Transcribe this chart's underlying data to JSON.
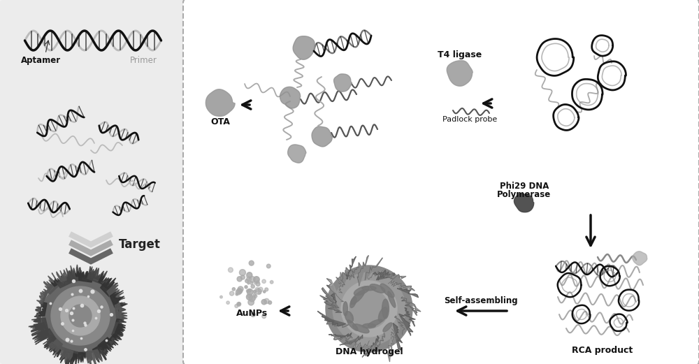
{
  "bg_color": "#f0f0f0",
  "right_panel_bg": "#ffffff",
  "border_color": "#999999",
  "left_panel_bg": "#e8e8e8",
  "labels": {
    "aptamer": "Aptamer",
    "primer": "Primer",
    "target": "Target",
    "ota": "OTA",
    "t4_ligase": "T4 ligase",
    "padlock": "Padlock probe",
    "phi29_line1": "Phi29 DNA",
    "phi29_line2": "Polymerase",
    "self_assembling": "Self-assembling",
    "dna_hydrogel": "DNA hydrogel",
    "aunps": "AuNPs",
    "rca_product": "RCA product"
  },
  "arrow_color": "#111111",
  "dna_black": "#111111",
  "dna_gray": "#aaaaaa",
  "blob_gray": "#909090",
  "dark_blob": "#555555",
  "aunp_color": "#aaaaaa",
  "circle_stroke": "#111111"
}
